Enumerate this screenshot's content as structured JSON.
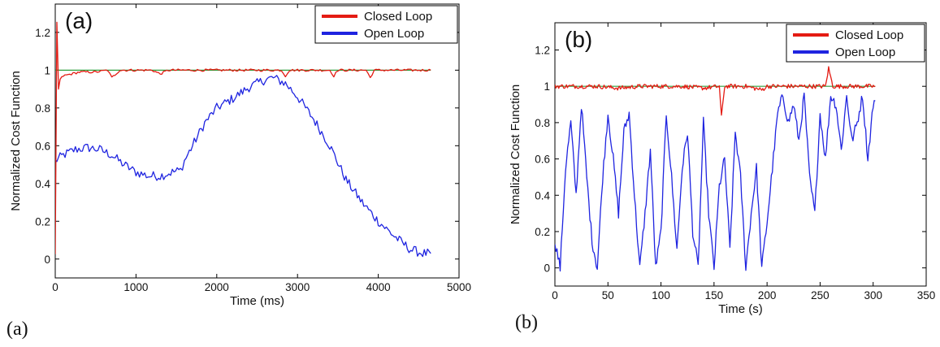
{
  "colors": {
    "closed": "#e41b13",
    "open": "#1f24e0",
    "reference": "#2e9e3a"
  },
  "captions": {
    "a": "(a)",
    "b": "(b)"
  },
  "chart_data": [
    {
      "type": "line",
      "panel_label": "(a)",
      "xlabel": "Time (ms)",
      "ylabel": "Normalized Cost Function",
      "xlim": [
        0,
        5000
      ],
      "ylim": [
        -0.1,
        1.35
      ],
      "xticks": [
        0,
        1000,
        2000,
        3000,
        4000,
        5000
      ],
      "yticks": [
        0,
        0.2,
        0.4,
        0.6,
        0.8,
        1,
        1.2
      ],
      "ytick_labels": [
        "0",
        "0.2",
        "0.4",
        "0.6",
        "0.8",
        "1",
        "1.2"
      ],
      "legend": "top-right",
      "reference_line": 1.0,
      "series": [
        {
          "name": "Closed Loop",
          "color": "#e41b13",
          "x": [
            0,
            20,
            40,
            60,
            100,
            200,
            300,
            500,
            650,
            700,
            800,
            1000,
            1200,
            1300,
            1400,
            1600,
            2000,
            2400,
            2800,
            2850,
            2900,
            3100,
            3400,
            3450,
            3500,
            3700,
            3850,
            3900,
            3950,
            4200,
            4650
          ],
          "y": [
            0.02,
            1.25,
            0.9,
            0.95,
            0.97,
            0.98,
            0.99,
            0.99,
            1.0,
            0.96,
            1.0,
            1.0,
            1.0,
            0.98,
            1.0,
            1.0,
            1.0,
            1.0,
            1.0,
            0.97,
            1.0,
            1.0,
            1.0,
            0.97,
            1.0,
            1.0,
            1.0,
            0.96,
            1.0,
            1.0,
            1.0
          ]
        },
        {
          "name": "Open Loop",
          "color": "#1f24e0",
          "x": [
            0,
            100,
            250,
            400,
            550,
            700,
            850,
            1000,
            1150,
            1300,
            1450,
            1550,
            1600,
            1700,
            1850,
            2000,
            2200,
            2400,
            2600,
            2700,
            2850,
            3000,
            3200,
            3400,
            3600,
            3800,
            4000,
            4200,
            4400,
            4550,
            4650
          ],
          "y": [
            0.52,
            0.55,
            0.58,
            0.59,
            0.58,
            0.55,
            0.5,
            0.46,
            0.44,
            0.44,
            0.46,
            0.47,
            0.52,
            0.6,
            0.72,
            0.8,
            0.85,
            0.91,
            0.95,
            0.96,
            0.93,
            0.86,
            0.74,
            0.6,
            0.42,
            0.3,
            0.2,
            0.12,
            0.05,
            0.03,
            0.03
          ]
        }
      ]
    },
    {
      "type": "line",
      "panel_label": "(b)",
      "xlabel": "Time (s)",
      "ylabel": "Normalized Cost Function",
      "xlim": [
        0,
        350
      ],
      "ylim": [
        -0.1,
        1.35
      ],
      "xticks": [
        0,
        50,
        100,
        150,
        200,
        250,
        300,
        350
      ],
      "yticks": [
        0,
        0.2,
        0.4,
        0.6,
        0.8,
        1,
        1.2
      ],
      "ytick_labels": [
        "0",
        "0.2",
        "0.4",
        "0.6",
        "0.8",
        "1",
        "1.2"
      ],
      "legend": "top-right",
      "reference_line": 1.0,
      "series": [
        {
          "name": "Closed Loop",
          "color": "#e41b13",
          "x": [
            0,
            20,
            40,
            60,
            80,
            100,
            120,
            140,
            155,
            157,
            160,
            180,
            195,
            200,
            220,
            240,
            255,
            258,
            262,
            280,
            302
          ],
          "y": [
            1.0,
            1.0,
            1.0,
            0.99,
            1.0,
            1.0,
            1.0,
            0.99,
            1.0,
            0.83,
            1.0,
            1.0,
            0.98,
            1.0,
            1.0,
            1.0,
            1.0,
            1.1,
            1.0,
            1.0,
            1.0
          ]
        },
        {
          "name": "Open Loop",
          "color": "#1f24e0",
          "x": [
            0,
            5,
            10,
            15,
            20,
            25,
            30,
            35,
            40,
            45,
            50,
            55,
            60,
            65,
            70,
            75,
            80,
            85,
            90,
            95,
            100,
            105,
            110,
            115,
            120,
            125,
            130,
            135,
            140,
            145,
            150,
            155,
            160,
            165,
            170,
            175,
            180,
            185,
            190,
            195,
            198,
            200,
            205,
            210,
            215,
            220,
            225,
            230,
            235,
            240,
            245,
            250,
            255,
            260,
            265,
            270,
            275,
            280,
            285,
            290,
            295,
            300,
            302
          ],
          "y": [
            0.15,
            0.0,
            0.55,
            0.8,
            0.4,
            0.9,
            0.5,
            0.15,
            0.0,
            0.5,
            0.85,
            0.6,
            0.3,
            0.75,
            0.85,
            0.4,
            0.0,
            0.3,
            0.65,
            0.0,
            0.2,
            0.85,
            0.5,
            0.1,
            0.55,
            0.75,
            0.2,
            0.0,
            0.8,
            0.3,
            0.0,
            0.45,
            0.6,
            0.1,
            0.75,
            0.5,
            0.0,
            0.3,
            0.55,
            0.0,
            0.15,
            0.25,
            0.55,
            0.85,
            0.95,
            0.8,
            0.9,
            0.7,
            0.95,
            0.5,
            0.3,
            0.85,
            0.6,
            0.95,
            0.9,
            0.65,
            0.95,
            0.7,
            0.8,
            0.95,
            0.6,
            0.9,
            0.92
          ]
        }
      ]
    }
  ]
}
